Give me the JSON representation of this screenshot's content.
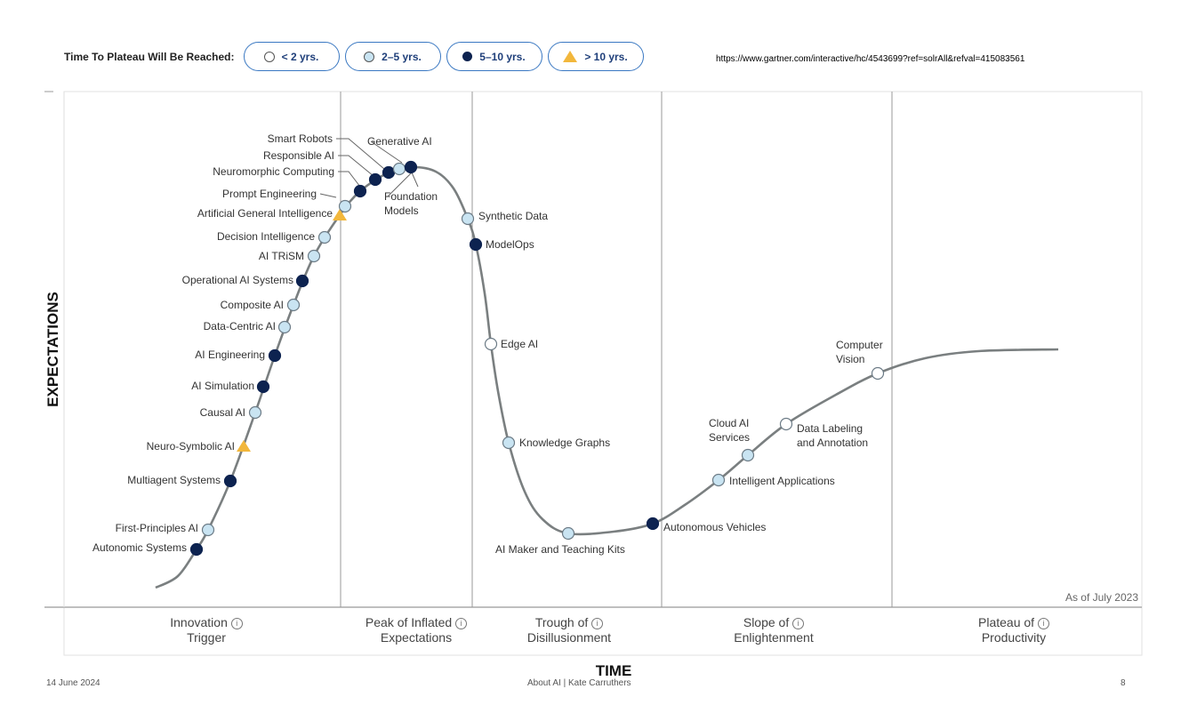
{
  "legend": {
    "title": "Time To Plateau Will Be Reached:",
    "items": [
      {
        "label": "< 2 yrs.",
        "marker": "white-circle"
      },
      {
        "label": "2–5 yrs.",
        "marker": "light-blue-circle"
      },
      {
        "label": "5–10 yrs.",
        "marker": "dark-blue-circle"
      },
      {
        "label": "> 10 yrs.",
        "marker": "yellow-triangle"
      }
    ]
  },
  "url": "https://www.gartner.com/interactive/hc/4543699?ref=solrAll&refval=415083561",
  "colors": {
    "white": "#ffffff",
    "light": "#c9e4f2",
    "dark": "#0d2350",
    "triangle": "#f2b73c",
    "curve": "#7a7f80",
    "pill_border": "#3a78c2",
    "highlight_label": "#4a72b8"
  },
  "y_axis_label": "EXPECTATIONS",
  "x_axis_label": "TIME",
  "as_of": "As of July 2023",
  "phase_lines": [
    [
      "Innovation",
      "Trigger"
    ],
    [
      "Peak of Inflated",
      "Expectations"
    ],
    [
      "Trough of",
      "Disillusionment"
    ],
    [
      "Slope of",
      "Enlightenment"
    ],
    [
      "Plateau of",
      "Productivity"
    ]
  ],
  "technologies": [
    {
      "name": "Autonomic Systems",
      "plateau": "5–10 yrs."
    },
    {
      "name": "First-Principles AI",
      "plateau": "2–5 yrs."
    },
    {
      "name": "Multiagent Systems",
      "plateau": "5–10 yrs."
    },
    {
      "name": "Neuro-Symbolic AI",
      "plateau": "> 10 yrs."
    },
    {
      "name": "Causal AI",
      "plateau": "2–5 yrs."
    },
    {
      "name": "AI Simulation",
      "plateau": "5–10 yrs."
    },
    {
      "name": "AI Engineering",
      "plateau": "5–10 yrs."
    },
    {
      "name": "Data-Centric AI",
      "plateau": "2–5 yrs."
    },
    {
      "name": "Composite AI",
      "plateau": "2–5 yrs."
    },
    {
      "name": "Operational AI Systems",
      "plateau": "5–10 yrs."
    },
    {
      "name": "AI TRiSM",
      "plateau": "2–5 yrs."
    },
    {
      "name": "Decision Intelligence",
      "plateau": "2–5 yrs."
    },
    {
      "name": "Artificial General Intelligence",
      "plateau": "> 10 yrs."
    },
    {
      "name": "Prompt Engineering",
      "plateau": "2–5 yrs."
    },
    {
      "name": "Neuromorphic Computing",
      "plateau": "5–10 yrs."
    },
    {
      "name": "Responsible AI",
      "plateau": "5–10 yrs."
    },
    {
      "name": "Smart Robots",
      "plateau": "5–10 yrs."
    },
    {
      "name": "Generative AI",
      "plateau": "2–5 yrs."
    },
    {
      "name": "Foundation Models",
      "lines": [
        "Foundation",
        "Models"
      ],
      "plateau": "5–10 yrs."
    },
    {
      "name": "Synthetic Data",
      "plateau": "2–5 yrs."
    },
    {
      "name": "ModelOps",
      "plateau": "5–10 yrs."
    },
    {
      "name": "Edge AI",
      "plateau": "< 2 yrs."
    },
    {
      "name": "Knowledge Graphs",
      "plateau": "2–5 yrs."
    },
    {
      "name": "AI Maker and Teaching Kits",
      "plateau": "2–5 yrs."
    },
    {
      "name": "Autonomous Vehicles",
      "plateau": "5–10 yrs."
    },
    {
      "name": "Intelligent Applications",
      "plateau": "2–5 yrs."
    },
    {
      "name": "Cloud AI Services",
      "lines": [
        "Cloud AI",
        "Services"
      ],
      "plateau": "2–5 yrs."
    },
    {
      "name": "Data Labeling and Annotation",
      "lines": [
        "Data Labeling",
        "and Annotation"
      ],
      "plateau": "< 2 yrs."
    },
    {
      "name": "Computer Vision",
      "lines": [
        "Computer",
        "Vision"
      ],
      "plateau": "< 2 yrs."
    }
  ],
  "footer": {
    "date": "14 June 2024",
    "center": "About AI | Kate Carruthers",
    "page": "8"
  }
}
